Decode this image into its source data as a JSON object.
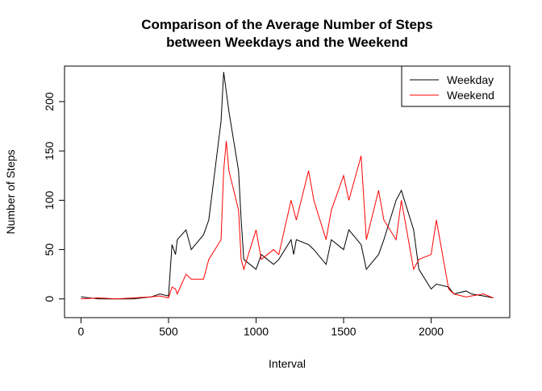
{
  "chart_data": {
    "type": "line",
    "title": "Comparison of the Average Number of Steps",
    "subtitle": "between Weekdays and the Weekend",
    "x_label": "Interval",
    "y_label": "Number of Steps",
    "x": [
      0,
      100,
      200,
      300,
      400,
      450,
      500,
      520,
      540,
      550,
      600,
      630,
      700,
      730,
      800,
      815,
      830,
      845,
      900,
      915,
      930,
      1000,
      1030,
      1100,
      1130,
      1200,
      1215,
      1230,
      1300,
      1330,
      1400,
      1430,
      1500,
      1530,
      1600,
      1630,
      1700,
      1730,
      1800,
      1830,
      1900,
      1930,
      2000,
      2030,
      2100,
      2130,
      2200,
      2230,
      2300,
      2355
    ],
    "series": [
      {
        "name": "Weekday",
        "color": "#000000",
        "values": [
          2,
          0,
          0,
          0,
          2,
          5,
          3,
          55,
          45,
          60,
          70,
          50,
          65,
          80,
          180,
          230,
          210,
          190,
          130,
          80,
          40,
          30,
          45,
          35,
          40,
          60,
          45,
          60,
          55,
          50,
          35,
          60,
          50,
          70,
          55,
          30,
          45,
          60,
          100,
          110,
          70,
          30,
          10,
          15,
          12,
          5,
          8,
          5,
          3,
          1
        ]
      },
      {
        "name": "Weekend",
        "color": "#ff0000",
        "values": [
          0,
          1,
          0,
          1,
          2,
          3,
          1,
          12,
          10,
          5,
          25,
          20,
          20,
          40,
          60,
          130,
          160,
          130,
          90,
          40,
          30,
          70,
          40,
          50,
          45,
          100,
          90,
          80,
          130,
          100,
          60,
          90,
          125,
          100,
          145,
          60,
          110,
          80,
          60,
          100,
          30,
          40,
          45,
          80,
          10,
          5,
          2,
          3,
          5,
          1
        ]
      }
    ],
    "xlim": [
      -94,
      2449
    ],
    "ylim": [
      -19,
      236
    ],
    "xticks": [
      0,
      500,
      1000,
      1500,
      2000
    ],
    "yticks": [
      0,
      50,
      100,
      150,
      200
    ],
    "legend": "top-right"
  }
}
